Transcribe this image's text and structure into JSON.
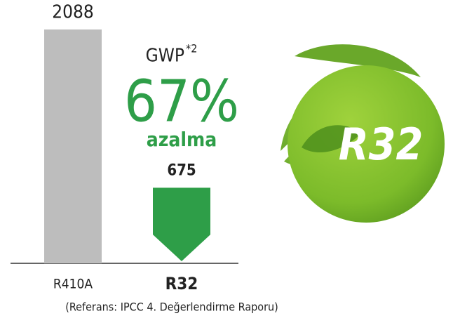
{
  "chart_data": {
    "type": "bar",
    "categories": [
      "R410A",
      "R32"
    ],
    "values": [
      2088,
      675
    ],
    "colors": [
      "#bdbdbd",
      "#2e9e48"
    ],
    "metric": "GWP",
    "metric_note": "*2",
    "annotation": "67%",
    "annotation_sub": "azalma",
    "badge": "R32",
    "footnote": "(Referans: IPCC 4. Değerlendirme Raporu)"
  }
}
